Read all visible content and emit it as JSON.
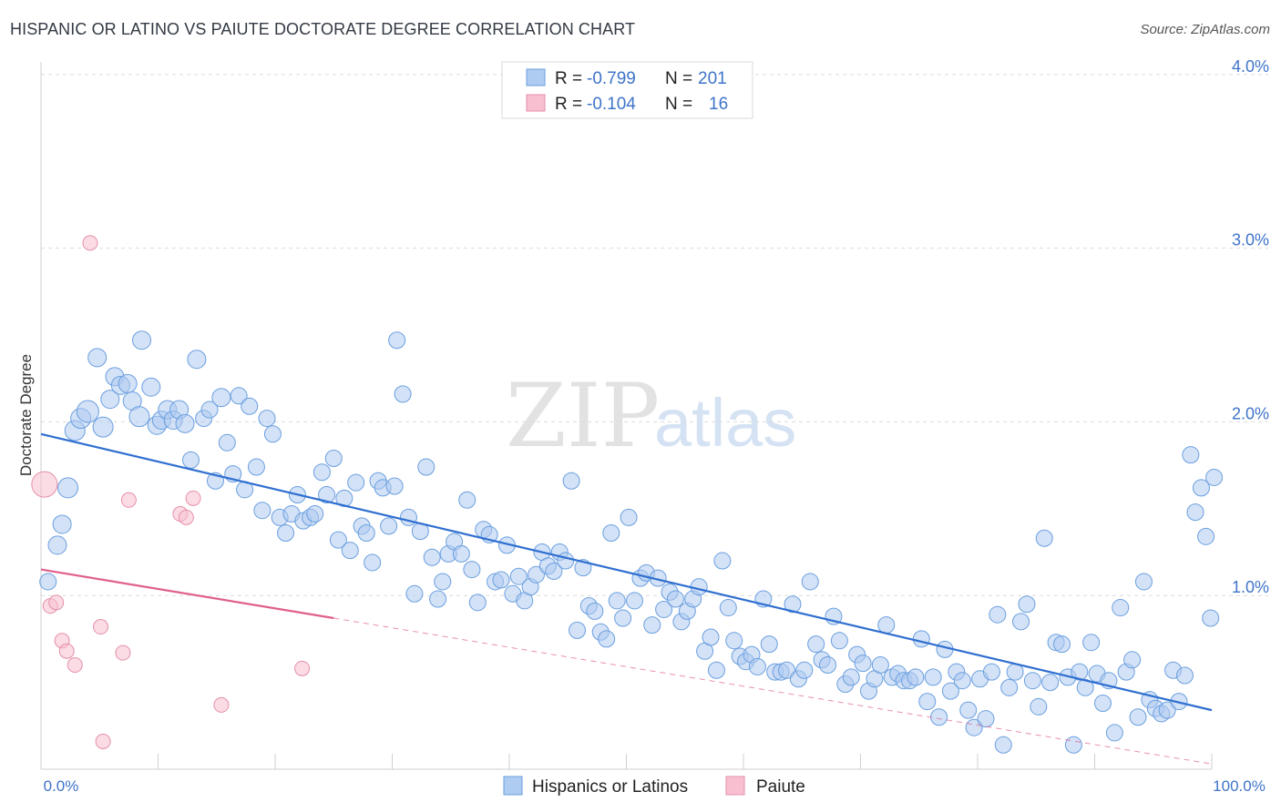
{
  "header": {
    "title": "HISPANIC OR LATINO VS PAIUTE DOCTORATE DEGREE CORRELATION CHART",
    "source": "Source: ZipAtlas.com"
  },
  "watermark": {
    "zip": "ZIP",
    "atlas": "atlas"
  },
  "colors": {
    "blue_fill": "#aecbf1",
    "blue_stroke": "#6b9fdf",
    "blue_line": "#2f6fd0",
    "pink_fill": "#f7bfcf",
    "pink_stroke": "#e58fa8",
    "pink_line": "#e0608a",
    "axis_value": "#3f74c9",
    "grid": "#dcdcdc"
  },
  "legend": {
    "rows": [
      {
        "r_label": "R = ",
        "r_value": "-0.799",
        "n_label": "N = ",
        "n_value": "201"
      },
      {
        "r_label": "R = ",
        "r_value": "-0.104",
        "n_label": "N = ",
        "n_value": "16"
      }
    ]
  },
  "bottom_legend": [
    "Hispanics or Latinos",
    "Paiute"
  ],
  "chart_data": {
    "type": "scatter",
    "title": "HISPANIC OR LATINO VS PAIUTE DOCTORATE DEGREE CORRELATION CHART",
    "xlabel": "",
    "ylabel": "Doctorate Degree",
    "xlim": [
      0,
      100
    ],
    "ylim": [
      0,
      4.2
    ],
    "x_tick_labels": [
      "0.0%",
      "100.0%"
    ],
    "y_ticks": [
      1,
      2,
      3,
      4
    ],
    "y_tick_labels": [
      "1.0%",
      "2.0%",
      "3.0%",
      "4.0%"
    ],
    "series": [
      {
        "name": "Hispanics or Latinos",
        "r": -0.799,
        "n": 201,
        "trend": {
          "x": [
            0,
            100
          ],
          "y": [
            1.93,
            0.34
          ]
        },
        "points": [
          [
            0.6,
            1.08,
            9
          ],
          [
            1.4,
            1.29,
            10
          ],
          [
            1.8,
            1.41,
            10
          ],
          [
            2.3,
            1.62,
            11
          ],
          [
            2.9,
            1.95,
            11
          ],
          [
            3.4,
            2.02,
            11
          ],
          [
            4.0,
            2.06,
            12
          ],
          [
            4.8,
            2.37,
            10
          ],
          [
            5.3,
            1.97,
            11
          ],
          [
            5.9,
            2.13,
            10
          ],
          [
            6.3,
            2.26,
            10
          ],
          [
            6.8,
            2.21,
            10
          ],
          [
            7.4,
            2.22,
            10
          ],
          [
            7.8,
            2.12,
            10
          ],
          [
            8.4,
            2.03,
            11
          ],
          [
            8.6,
            2.47,
            10
          ],
          [
            9.4,
            2.2,
            10
          ],
          [
            9.9,
            1.98,
            10
          ],
          [
            10.3,
            2.01,
            10
          ],
          [
            10.8,
            2.07,
            10
          ],
          [
            11.3,
            2.01,
            10
          ],
          [
            11.8,
            2.07,
            10
          ],
          [
            12.3,
            1.99,
            10
          ],
          [
            12.8,
            1.78,
            9
          ],
          [
            13.3,
            2.36,
            10
          ],
          [
            13.9,
            2.02,
            9
          ],
          [
            14.4,
            2.07,
            9
          ],
          [
            14.9,
            1.66,
            9
          ],
          [
            15.4,
            2.14,
            10
          ],
          [
            15.9,
            1.88,
            9
          ],
          [
            16.4,
            1.7,
            9
          ],
          [
            16.9,
            2.15,
            9
          ],
          [
            17.4,
            1.61,
            9
          ],
          [
            17.8,
            2.09,
            9
          ],
          [
            18.4,
            1.74,
            9
          ],
          [
            18.9,
            1.49,
            9
          ],
          [
            19.3,
            2.02,
            9
          ],
          [
            19.8,
            1.93,
            9
          ],
          [
            20.4,
            1.45,
            9
          ],
          [
            20.9,
            1.36,
            9
          ],
          [
            21.4,
            1.47,
            9
          ],
          [
            21.9,
            1.58,
            9
          ],
          [
            22.4,
            1.43,
            9
          ],
          [
            23.0,
            1.45,
            9
          ],
          [
            23.4,
            1.47,
            9
          ],
          [
            24.0,
            1.71,
            9
          ],
          [
            24.4,
            1.58,
            9
          ],
          [
            25.0,
            1.79,
            9
          ],
          [
            25.4,
            1.32,
            9
          ],
          [
            25.9,
            1.56,
            9
          ],
          [
            26.4,
            1.26,
            9
          ],
          [
            26.9,
            1.65,
            9
          ],
          [
            27.4,
            1.4,
            9
          ],
          [
            27.8,
            1.36,
            9
          ],
          [
            28.3,
            1.19,
            9
          ],
          [
            28.8,
            1.66,
            9
          ],
          [
            29.2,
            1.62,
            9
          ],
          [
            29.7,
            1.4,
            9
          ],
          [
            30.2,
            1.63,
            9
          ],
          [
            30.4,
            2.47,
            9
          ],
          [
            30.9,
            2.16,
            9
          ],
          [
            31.4,
            1.45,
            9
          ],
          [
            31.9,
            1.01,
            9
          ],
          [
            32.4,
            1.37,
            9
          ],
          [
            32.9,
            1.74,
            9
          ],
          [
            33.4,
            1.22,
            9
          ],
          [
            33.9,
            0.98,
            9
          ],
          [
            34.3,
            1.08,
            9
          ],
          [
            34.8,
            1.24,
            9
          ],
          [
            35.3,
            1.31,
            9
          ],
          [
            35.9,
            1.24,
            9
          ],
          [
            36.4,
            1.55,
            9
          ],
          [
            36.8,
            1.15,
            9
          ],
          [
            37.3,
            0.96,
            9
          ],
          [
            37.8,
            1.38,
            9
          ],
          [
            38.3,
            1.35,
            9
          ],
          [
            38.8,
            1.08,
            9
          ],
          [
            39.3,
            1.09,
            9
          ],
          [
            39.8,
            1.29,
            9
          ],
          [
            40.3,
            1.01,
            9
          ],
          [
            40.8,
            1.11,
            9
          ],
          [
            41.3,
            0.97,
            9
          ],
          [
            41.8,
            1.05,
            9
          ],
          [
            42.3,
            1.12,
            9
          ],
          [
            42.8,
            1.25,
            9
          ],
          [
            43.3,
            1.17,
            9
          ],
          [
            43.8,
            1.14,
            9
          ],
          [
            44.3,
            1.25,
            9
          ],
          [
            44.8,
            1.2,
            9
          ],
          [
            45.3,
            1.66,
            9
          ],
          [
            45.8,
            0.8,
            9
          ],
          [
            46.3,
            1.16,
            9
          ],
          [
            46.8,
            0.94,
            9
          ],
          [
            47.3,
            0.91,
            9
          ],
          [
            47.8,
            0.79,
            9
          ],
          [
            48.3,
            0.75,
            9
          ],
          [
            48.7,
            1.36,
            9
          ],
          [
            49.2,
            0.97,
            9
          ],
          [
            49.7,
            0.87,
            9
          ],
          [
            50.2,
            1.45,
            9
          ],
          [
            50.7,
            0.97,
            9
          ],
          [
            51.2,
            1.1,
            9
          ],
          [
            51.7,
            1.13,
            9
          ],
          [
            52.2,
            0.83,
            9
          ],
          [
            52.7,
            1.1,
            9
          ],
          [
            53.2,
            0.92,
            9
          ],
          [
            53.7,
            1.02,
            9
          ],
          [
            54.2,
            0.98,
            9
          ],
          [
            54.7,
            0.85,
            9
          ],
          [
            55.2,
            0.91,
            9
          ],
          [
            55.7,
            0.98,
            9
          ],
          [
            56.2,
            1.05,
            9
          ],
          [
            56.7,
            0.68,
            9
          ],
          [
            57.2,
            0.76,
            9
          ],
          [
            57.7,
            0.57,
            9
          ],
          [
            58.2,
            1.2,
            9
          ],
          [
            58.7,
            0.93,
            9
          ],
          [
            59.2,
            0.74,
            9
          ],
          [
            59.7,
            0.65,
            9
          ],
          [
            60.2,
            0.62,
            9
          ],
          [
            60.7,
            0.66,
            9
          ],
          [
            61.2,
            0.59,
            9
          ],
          [
            61.7,
            0.98,
            9
          ],
          [
            62.2,
            0.72,
            9
          ],
          [
            62.7,
            0.56,
            9
          ],
          [
            63.2,
            0.56,
            9
          ],
          [
            63.7,
            0.57,
            9
          ],
          [
            64.2,
            0.95,
            9
          ],
          [
            64.7,
            0.52,
            9
          ],
          [
            65.2,
            0.57,
            9
          ],
          [
            65.7,
            1.08,
            9
          ],
          [
            66.2,
            0.72,
            9
          ],
          [
            66.7,
            0.63,
            9
          ],
          [
            67.2,
            0.6,
            9
          ],
          [
            67.7,
            0.88,
            9
          ],
          [
            68.2,
            0.74,
            9
          ],
          [
            68.7,
            0.49,
            9
          ],
          [
            69.2,
            0.53,
            9
          ],
          [
            69.7,
            0.66,
            9
          ],
          [
            70.2,
            0.61,
            9
          ],
          [
            70.7,
            0.45,
            9
          ],
          [
            71.2,
            0.52,
            9
          ],
          [
            71.7,
            0.6,
            9
          ],
          [
            72.2,
            0.83,
            9
          ],
          [
            72.7,
            0.53,
            9
          ],
          [
            73.2,
            0.55,
            9
          ],
          [
            73.7,
            0.51,
            9
          ],
          [
            74.2,
            0.51,
            9
          ],
          [
            74.7,
            0.53,
            9
          ],
          [
            75.2,
            0.75,
            9
          ],
          [
            75.7,
            0.39,
            9
          ],
          [
            76.2,
            0.53,
            9
          ],
          [
            76.7,
            0.3,
            9
          ],
          [
            77.2,
            0.69,
            9
          ],
          [
            77.7,
            0.45,
            9
          ],
          [
            78.2,
            0.56,
            9
          ],
          [
            78.7,
            0.51,
            9
          ],
          [
            79.2,
            0.34,
            9
          ],
          [
            79.7,
            0.24,
            9
          ],
          [
            80.2,
            0.52,
            9
          ],
          [
            80.7,
            0.29,
            9
          ],
          [
            81.2,
            0.56,
            9
          ],
          [
            81.7,
            0.89,
            9
          ],
          [
            82.2,
            0.14,
            9
          ],
          [
            82.7,
            0.47,
            9
          ],
          [
            83.2,
            0.56,
            9
          ],
          [
            83.7,
            0.85,
            9
          ],
          [
            84.2,
            0.95,
            9
          ],
          [
            84.7,
            0.51,
            9
          ],
          [
            85.2,
            0.36,
            9
          ],
          [
            85.7,
            1.33,
            9
          ],
          [
            86.2,
            0.5,
            9
          ],
          [
            86.7,
            0.73,
            9
          ],
          [
            87.2,
            0.72,
            9
          ],
          [
            87.7,
            0.53,
            9
          ],
          [
            88.2,
            0.14,
            9
          ],
          [
            88.7,
            0.56,
            9
          ],
          [
            89.2,
            0.47,
            9
          ],
          [
            89.7,
            0.73,
            9
          ],
          [
            90.2,
            0.55,
            9
          ],
          [
            90.7,
            0.38,
            9
          ],
          [
            91.2,
            0.51,
            9
          ],
          [
            91.7,
            0.21,
            9
          ],
          [
            92.2,
            0.93,
            9
          ],
          [
            92.7,
            0.56,
            9
          ],
          [
            93.2,
            0.63,
            9
          ],
          [
            93.7,
            0.3,
            9
          ],
          [
            94.2,
            1.08,
            9
          ],
          [
            94.7,
            0.4,
            9
          ],
          [
            95.2,
            0.35,
            9
          ],
          [
            95.7,
            0.32,
            9
          ],
          [
            96.2,
            0.34,
            9
          ],
          [
            96.7,
            0.57,
            9
          ],
          [
            97.2,
            0.39,
            9
          ],
          [
            97.7,
            0.54,
            9
          ],
          [
            98.2,
            1.81,
            9
          ],
          [
            98.6,
            1.48,
            9
          ],
          [
            99.1,
            1.62,
            9
          ],
          [
            99.5,
            1.34,
            9
          ],
          [
            99.9,
            0.87,
            9
          ],
          [
            100.2,
            1.68,
            9
          ]
        ]
      },
      {
        "name": "Paiute",
        "r": -0.104,
        "n": 16,
        "trend": {
          "x": [
            0,
            25
          ],
          "y": [
            1.15,
            0.87
          ]
        },
        "trend_dashed": {
          "x": [
            25,
            100
          ],
          "y": [
            0.87,
            0.03
          ]
        },
        "points": [
          [
            0.3,
            1.64,
            14
          ],
          [
            0.8,
            0.94,
            8
          ],
          [
            1.3,
            0.96,
            8
          ],
          [
            1.8,
            0.74,
            8
          ],
          [
            2.2,
            0.68,
            8
          ],
          [
            2.9,
            0.6,
            8
          ],
          [
            4.2,
            3.03,
            8
          ],
          [
            5.1,
            0.82,
            8
          ],
          [
            5.3,
            0.16,
            8
          ],
          [
            7.0,
            0.67,
            8
          ],
          [
            7.5,
            1.55,
            8
          ],
          [
            11.9,
            1.47,
            8
          ],
          [
            12.4,
            1.45,
            8
          ],
          [
            13.0,
            1.56,
            8
          ],
          [
            15.4,
            0.37,
            8
          ],
          [
            22.3,
            0.58,
            8
          ]
        ]
      }
    ]
  }
}
